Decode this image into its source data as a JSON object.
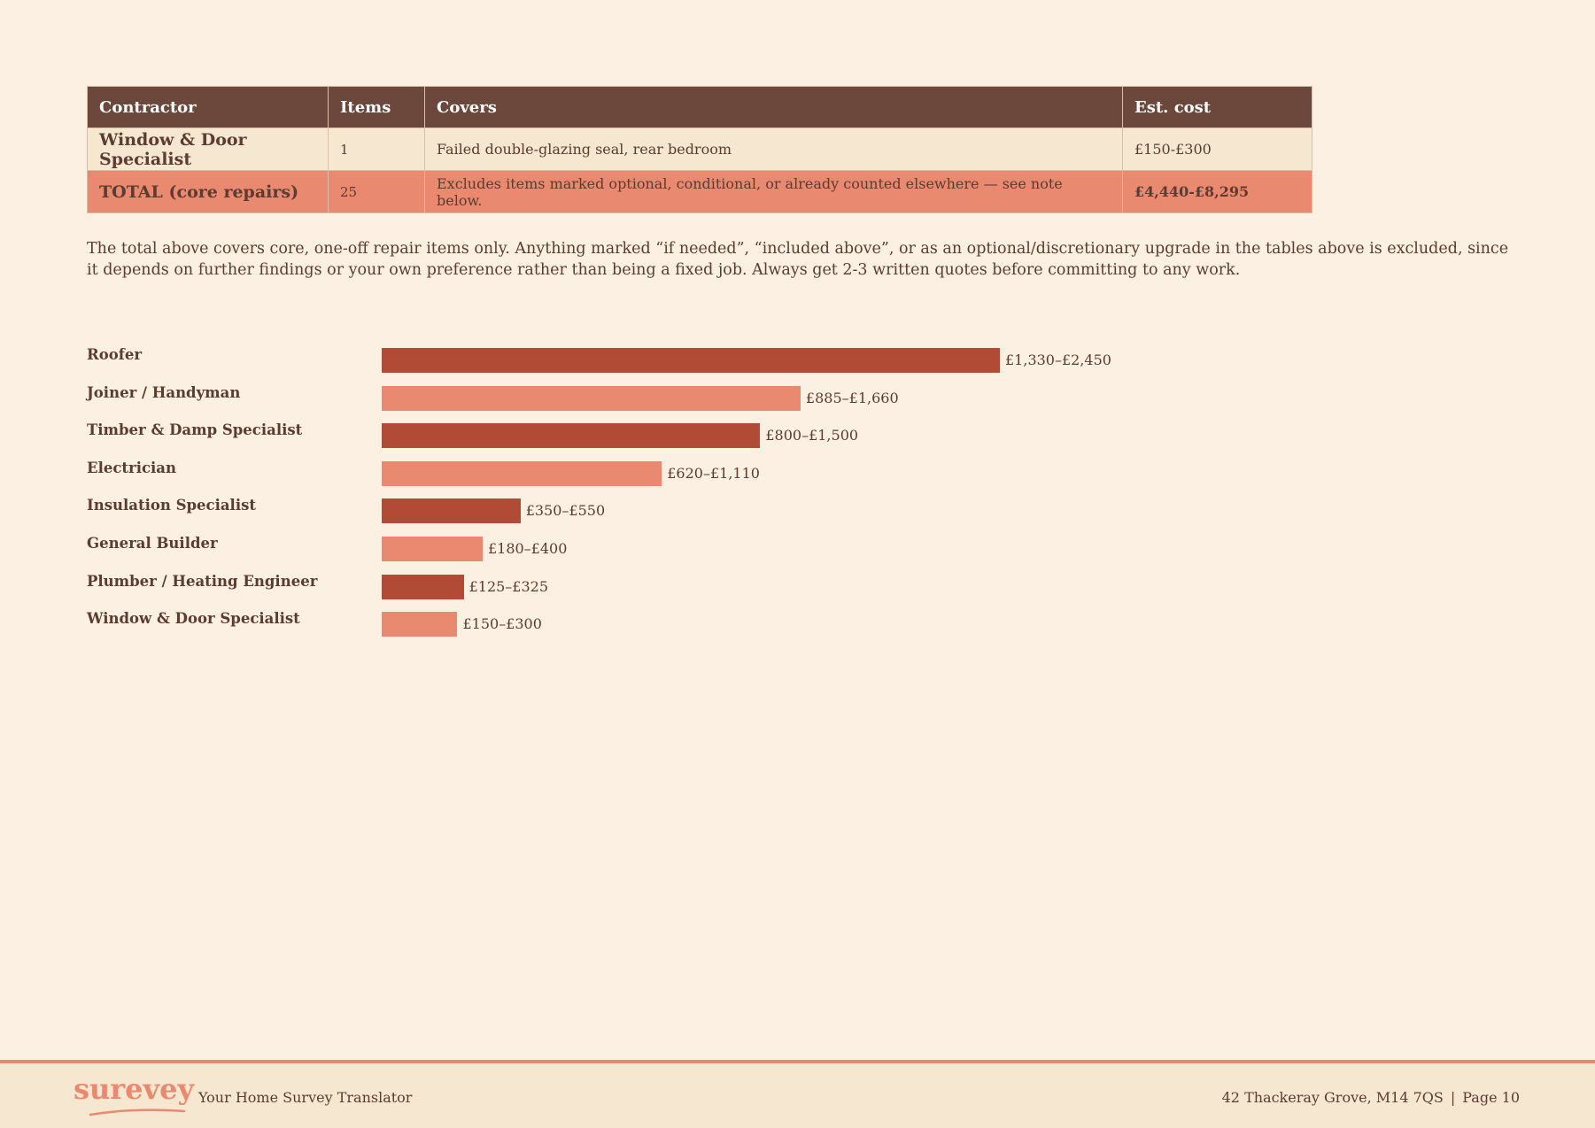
{
  "table": {
    "headers": [
      "Contractor",
      "Items",
      "Covers",
      "Est. cost"
    ],
    "rows": [
      {
        "contractor": "Window & Door Specialist",
        "items": "1",
        "covers": "Failed double-glazing seal, rear bedroom",
        "cost": "£150-£300"
      },
      {
        "contractor": "TOTAL (core repairs)",
        "items": "25",
        "covers": "Excludes items marked optional, conditional, or already counted elsewhere — see note below.",
        "cost": "£4,440-£8,295"
      }
    ]
  },
  "note": "The total above covers core, one-off repair items only. Anything marked “if needed”, “included above”, or as an optional/discretionary upgrade in the tables above is excluded, since it depends on further findings or your own preference rather than being a fixed job. Always get 2-3 written quotes before committing to any work.",
  "chart_data": {
    "type": "bar",
    "orientation": "horizontal",
    "categories": [
      "Roofer",
      "Joiner / Handyman",
      "Timber & Damp Specialist",
      "Electrician",
      "Insulation Specialist",
      "General Builder",
      "Plumber / Heating Engineer",
      "Window & Door Specialist"
    ],
    "series": [
      {
        "values_low": [
          1330,
          885,
          800,
          620,
          350,
          180,
          125,
          150
        ],
        "values_high": [
          2450,
          1660,
          1500,
          1110,
          550,
          400,
          325,
          300
        ]
      }
    ],
    "value_labels": [
      "£1,330–£2,450",
      "£885–£1,660",
      "£800–£1,500",
      "£620–£1,110",
      "£350–£550",
      "£180–£400",
      "£125–£325",
      "£150–£300"
    ],
    "colors": [
      "#b14b35",
      "#e9896f"
    ],
    "grid": false
  },
  "footer": {
    "logo": "surevey",
    "tagline": "Your Home Survey Translator",
    "address": "42 Thackeray Grove, M14 7QS",
    "separator": "|",
    "page": "Page 10"
  }
}
